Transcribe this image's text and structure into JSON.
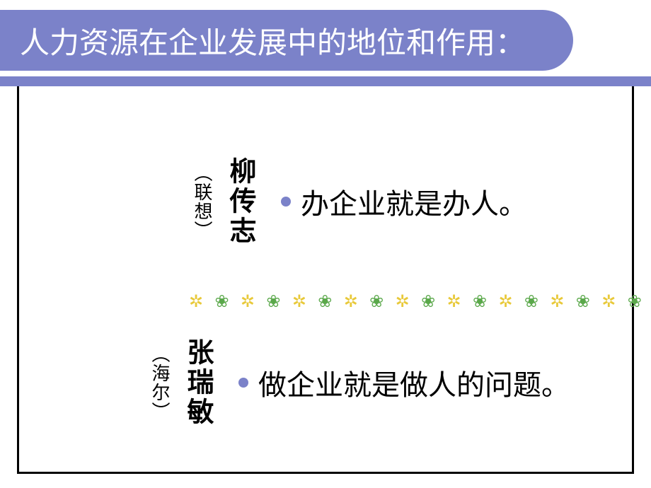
{
  "title": "人力资源在企业发展中的地位和作用：",
  "colors": {
    "banner_bg": "#7b82c9",
    "banner_text": "#ffffff",
    "body_text": "#000000",
    "bullet": "#7b82c9",
    "border": "#000000",
    "flower": "#e8c93a",
    "bee": "#5aa84a"
  },
  "quotes": [
    {
      "name": "柳传志",
      "source": "（联想）",
      "text": "办企业就是办人。"
    },
    {
      "name": "张瑞敏",
      "source": "（海尔）",
      "text": "做企业就是做人的问题。"
    }
  ],
  "divider_pattern": [
    "✲",
    "❀",
    "✲",
    "❀",
    "✲",
    "❀",
    "✲",
    "❀",
    "✲",
    "❀",
    "✲",
    "❀",
    "✲",
    "❀",
    "✲",
    "❀",
    "✲",
    "❀"
  ]
}
